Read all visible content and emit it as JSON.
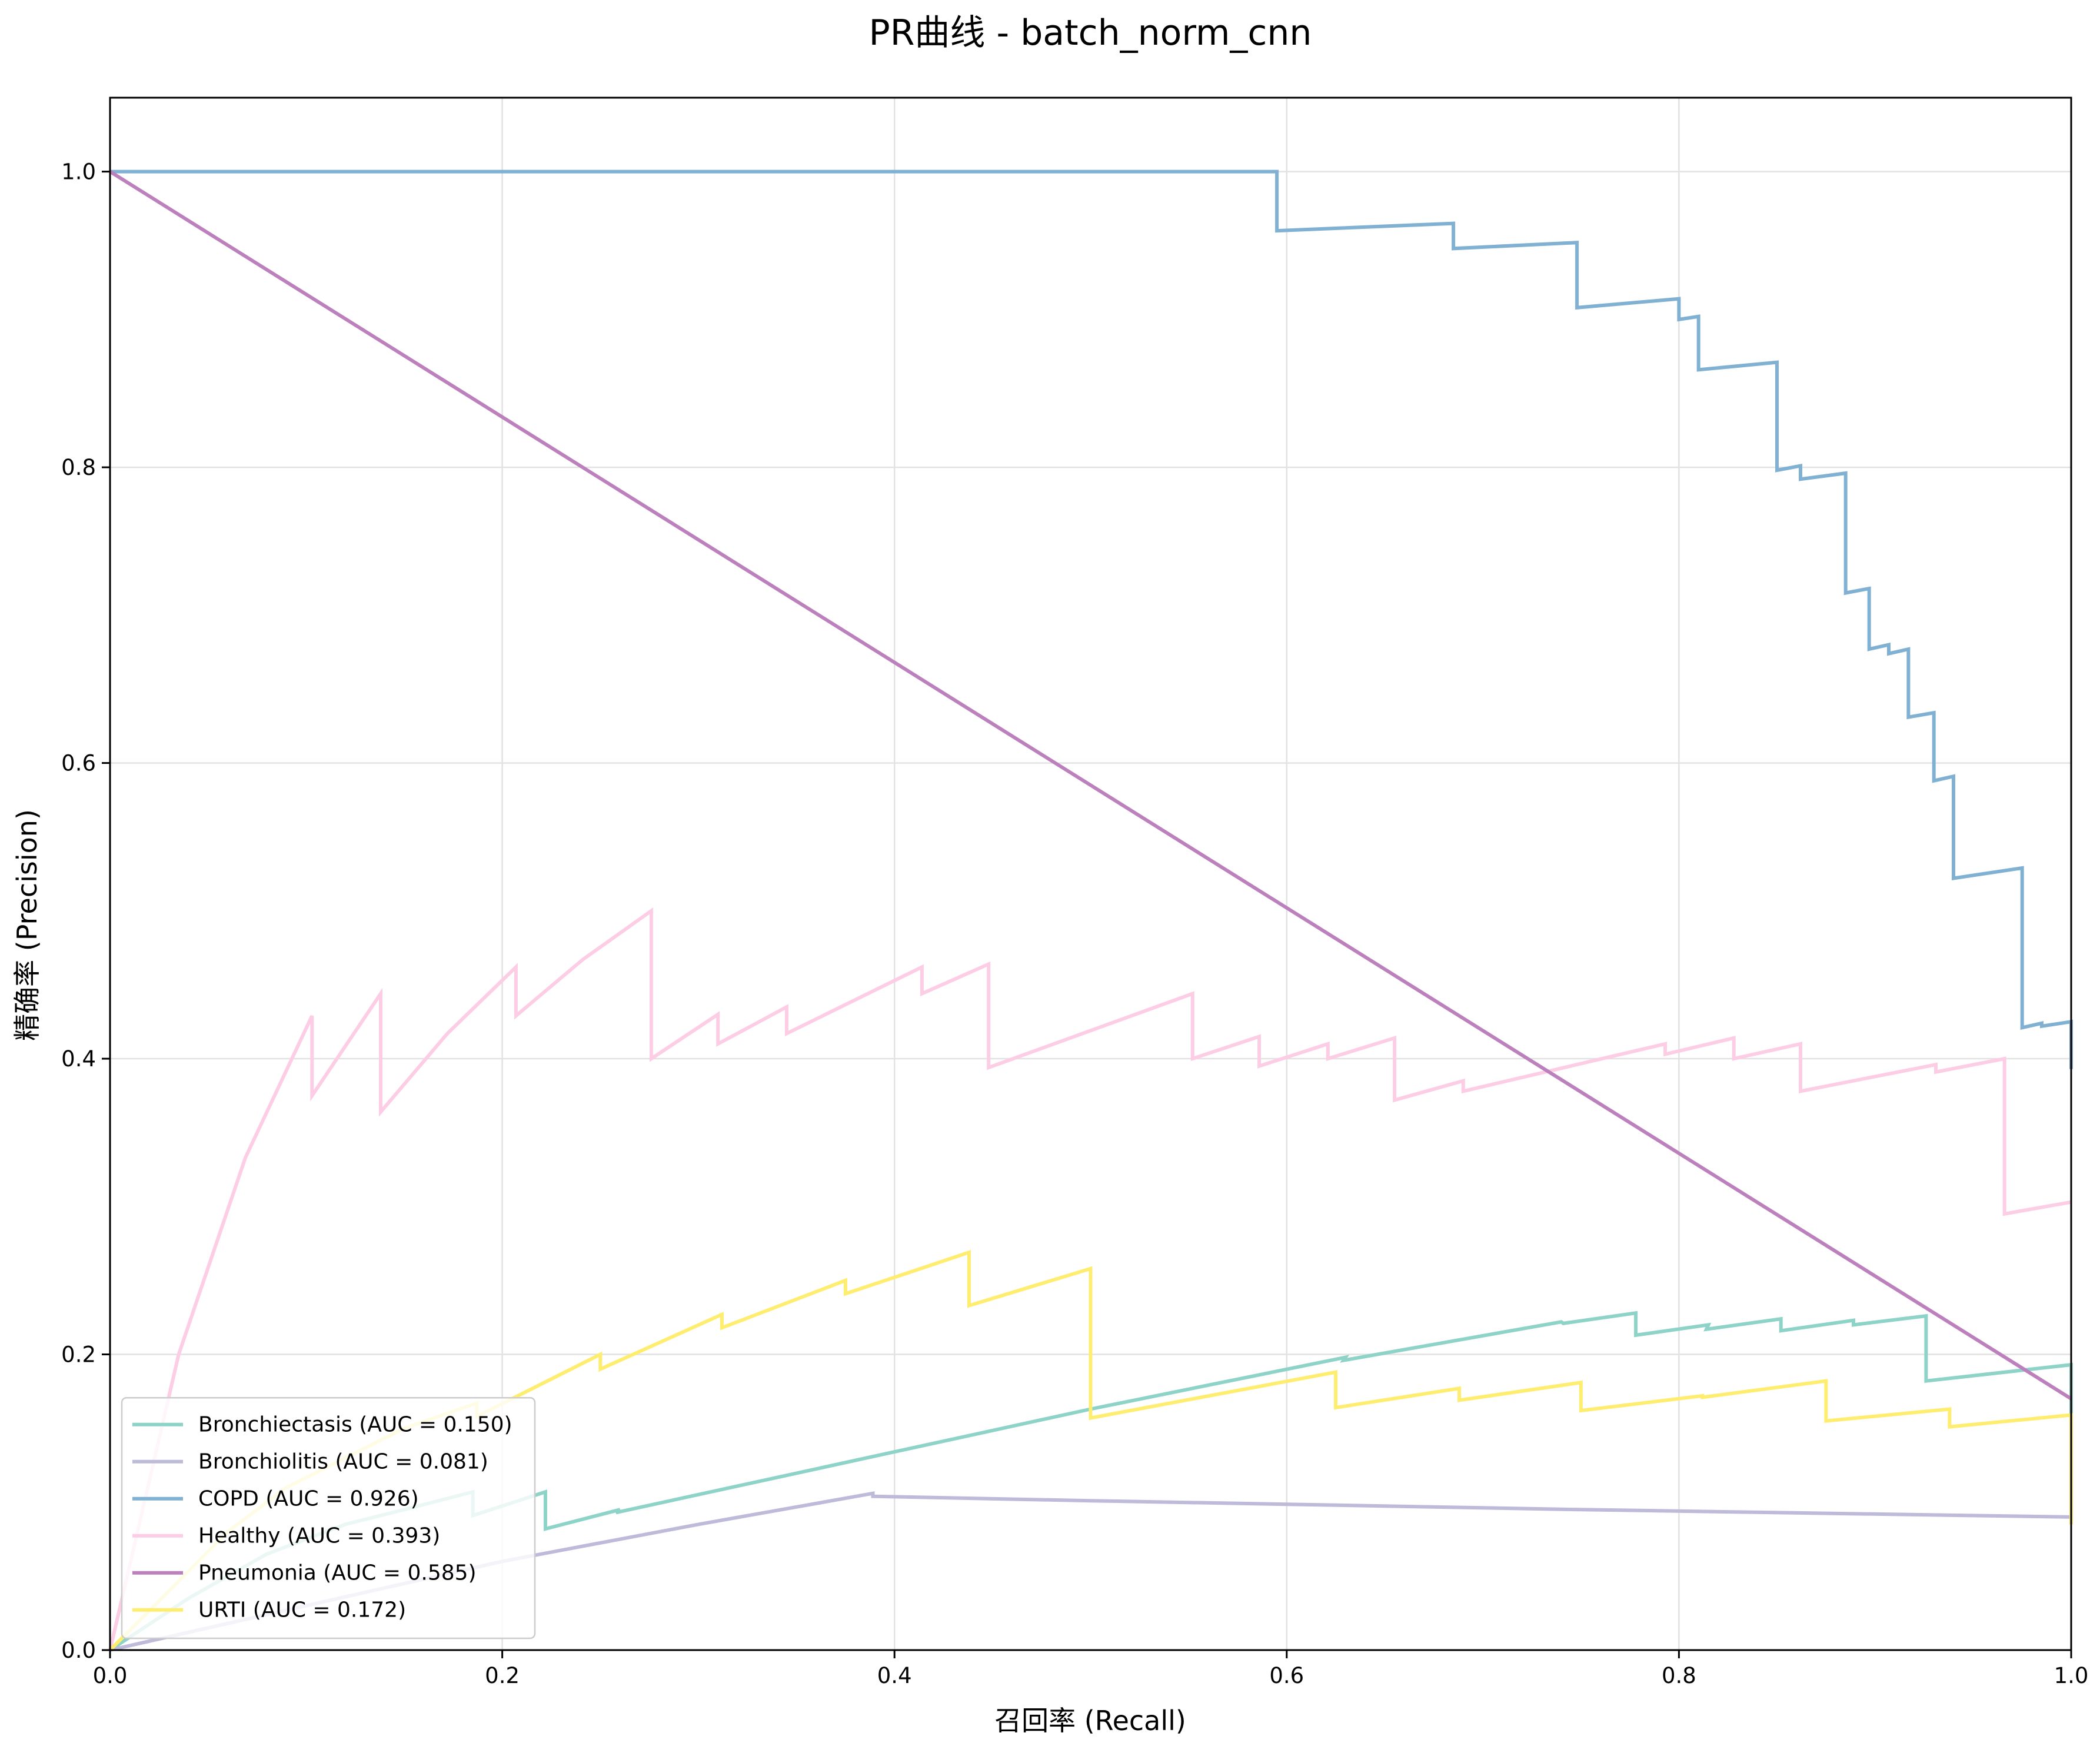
{
  "chart_data": {
    "type": "line",
    "title": "PR曲线 - batch_norm_cnn",
    "xlabel": "召回率 (Recall)",
    "ylabel": "精确率 (Precision)",
    "xlim": [
      0,
      1
    ],
    "ylim": [
      0,
      1.05
    ],
    "xticks": [
      0.0,
      0.2,
      0.4,
      0.6,
      0.8,
      1.0
    ],
    "yticks": [
      0.0,
      0.2,
      0.4,
      0.6,
      0.8,
      1.0
    ],
    "xtick_labels": [
      "0.0",
      "0.2",
      "0.4",
      "0.6",
      "0.8",
      "1.0"
    ],
    "ytick_labels": [
      "0.0",
      "0.2",
      "0.4",
      "0.6",
      "0.8",
      "1.0"
    ],
    "grid": true,
    "legend_position": "lower-left",
    "series": [
      {
        "name": "Bronchiectasis (AUC = 0.150)",
        "color": "#8dd3c7",
        "x": [
          0,
          0.04,
          0.08,
          0.12,
          0.15,
          0.185,
          0.185,
          0.222,
          0.222,
          0.26,
          0.258,
          0.5,
          0.63,
          0.629,
          0.74,
          0.741,
          0.778,
          0.778,
          0.815,
          0.814,
          0.852,
          0.852,
          0.889,
          0.889,
          0.926,
          0.926,
          1.0,
          1.0
        ],
        "y": [
          0,
          0.035,
          0.065,
          0.085,
          0.095,
          0.107,
          0.091,
          0.107,
          0.082,
          0.095,
          0.093,
          0.163,
          0.198,
          0.196,
          0.222,
          0.221,
          0.228,
          0.213,
          0.22,
          0.217,
          0.224,
          0.216,
          0.223,
          0.22,
          0.226,
          0.182,
          0.193,
          0.16
        ]
      },
      {
        "name": "Bronchiolitis (AUC = 0.081)",
        "color": "#bebada",
        "x": [
          0,
          0.1,
          0.2,
          0.3,
          0.389,
          0.389,
          0.5,
          0.75,
          1.0
        ],
        "y": [
          0,
          0.03,
          0.06,
          0.085,
          0.106,
          0.104,
          0.101,
          0.095,
          0.09
        ]
      },
      {
        "name": "COPD (AUC = 0.926)",
        "color": "#80b1d3",
        "x": [
          0,
          0.595,
          0.595,
          0.685,
          0.685,
          0.748,
          0.748,
          0.8,
          0.8,
          0.81,
          0.81,
          0.85,
          0.85,
          0.862,
          0.862,
          0.885,
          0.885,
          0.897,
          0.897,
          0.907,
          0.907,
          0.917,
          0.917,
          0.93,
          0.93,
          0.94,
          0.94,
          0.975,
          0.975,
          0.985,
          0.985,
          1.0,
          1.0
        ],
        "y": [
          1.0,
          1.0,
          0.96,
          0.965,
          0.948,
          0.952,
          0.908,
          0.914,
          0.9,
          0.902,
          0.866,
          0.871,
          0.798,
          0.801,
          0.792,
          0.796,
          0.715,
          0.718,
          0.677,
          0.68,
          0.674,
          0.677,
          0.631,
          0.634,
          0.588,
          0.591,
          0.522,
          0.529,
          0.421,
          0.424,
          0.422,
          0.425,
          0.393
        ]
      },
      {
        "name": "Healthy (AUC = 0.393)",
        "color": "#fccde5",
        "x": [
          0,
          0.035,
          0.069,
          0.103,
          0.103,
          0.138,
          0.138,
          0.172,
          0.207,
          0.207,
          0.241,
          0.276,
          0.276,
          0.31,
          0.31,
          0.345,
          0.345,
          0.414,
          0.414,
          0.448,
          0.448,
          0.552,
          0.552,
          0.586,
          0.586,
          0.621,
          0.621,
          0.655,
          0.655,
          0.69,
          0.69,
          0.793,
          0.793,
          0.828,
          0.828,
          0.862,
          0.862,
          0.931,
          0.931,
          0.966,
          0.966,
          1.0
        ],
        "y": [
          0,
          0.2,
          0.333,
          0.429,
          0.375,
          0.444,
          0.364,
          0.417,
          0.462,
          0.429,
          0.467,
          0.5,
          0.4,
          0.43,
          0.41,
          0.435,
          0.417,
          0.462,
          0.444,
          0.464,
          0.394,
          0.444,
          0.4,
          0.415,
          0.395,
          0.41,
          0.4,
          0.414,
          0.372,
          0.385,
          0.378,
          0.41,
          0.403,
          0.414,
          0.4,
          0.41,
          0.378,
          0.396,
          0.391,
          0.4,
          0.295,
          0.303
        ]
      },
      {
        "name": "Pneumonia (AUC = 0.585)",
        "color": "#bc80bd",
        "x": [
          0,
          1.0
        ],
        "y": [
          1.0,
          0.17
        ]
      },
      {
        "name": "URTI (AUC = 0.172)",
        "color": "#ffed6f",
        "x": [
          0,
          0.03,
          0.06,
          0.09,
          0.12,
          0.15,
          0.187,
          0.187,
          0.25,
          0.25,
          0.312,
          0.312,
          0.375,
          0.375,
          0.438,
          0.438,
          0.5,
          0.5,
          0.625,
          0.625,
          0.688,
          0.688,
          0.75,
          0.75,
          0.812,
          0.812,
          0.875,
          0.875,
          0.938,
          0.938,
          1.0,
          1.0
        ],
        "y": [
          0,
          0.04,
          0.08,
          0.11,
          0.13,
          0.15,
          0.167,
          0.158,
          0.2,
          0.19,
          0.227,
          0.218,
          0.25,
          0.241,
          0.269,
          0.233,
          0.258,
          0.157,
          0.188,
          0.164,
          0.177,
          0.169,
          0.181,
          0.162,
          0.172,
          0.171,
          0.182,
          0.155,
          0.163,
          0.151,
          0.159,
          0.085
        ]
      }
    ]
  }
}
